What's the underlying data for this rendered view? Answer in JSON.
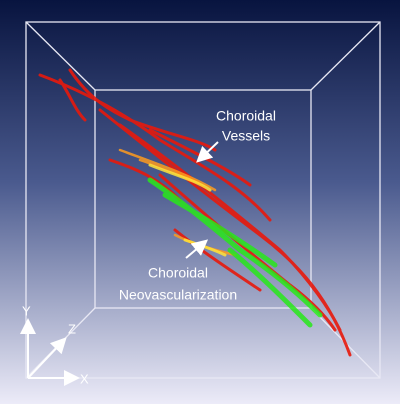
{
  "annotations": [
    {
      "lines": [
        "Choroidal",
        "Vessels"
      ]
    },
    {
      "lines": [
        "Choroidal",
        "Neovascularization"
      ]
    }
  ],
  "axes": {
    "y": "Y",
    "z": "Z",
    "x": "X"
  }
}
